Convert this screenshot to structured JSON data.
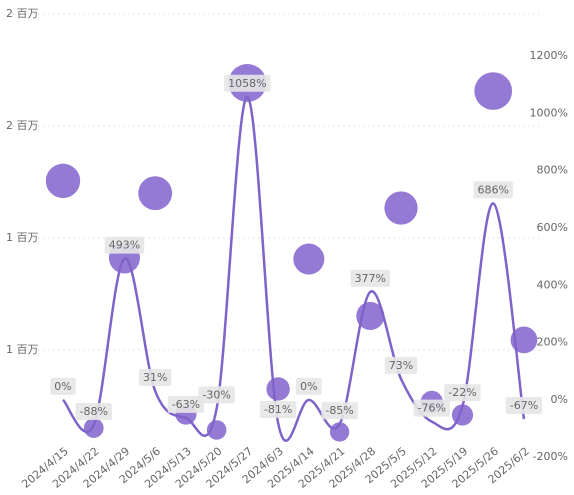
{
  "chart_data": {
    "type": "bubble-line",
    "categories": [
      "2024/4/15",
      "2024/4/22",
      "2024/4/29",
      "2024/5/6",
      "2024/5/13",
      "2024/5/20",
      "2024/5/27",
      "2024/6/3",
      "2025/4/14",
      "2025/4/21",
      "2025/4/28",
      "2025/5/5",
      "2025/5/12",
      "2025/5/19",
      "2025/5/26",
      "2025/6/2"
    ],
    "series": [
      {
        "type": "bubble",
        "color": "#8a6cd0",
        "values": [
          1255000,
          152000,
          911000,
          1200000,
          214000,
          143000,
          1692000,
          326000,
          906000,
          134000,
          652000,
          1134000,
          268000,
          210000,
          1656000,
          545000
        ]
      },
      {
        "type": "line",
        "axis": "y2",
        "color": "#7f63c9",
        "values": [
          0,
          -88,
          493,
          31,
          -63,
          -30,
          1058,
          -81,
          0,
          -85,
          377,
          73,
          -76,
          -22,
          686,
          -67
        ],
        "value_labels": [
          "0%",
          "-88%",
          "493%",
          "31%",
          "-63%",
          "-30%",
          "1058%",
          "-81%",
          "0%",
          "-85%",
          "377%",
          "73%",
          "-76%",
          "-22%",
          "686%",
          "-67%"
        ]
      }
    ],
    "ylim": [
      0,
      2000000
    ],
    "yticks": [
      {
        "value": 500000,
        "label": "1 百万"
      },
      {
        "value": 1000000,
        "label": "1 百万"
      },
      {
        "value": 1500000,
        "label": "2 百万"
      },
      {
        "value": 2000000,
        "label": "2 百万"
      }
    ],
    "y2lim": [
      -217,
      1347
    ],
    "y2ticks": [
      {
        "value": -200,
        "label": "-200%"
      },
      {
        "value": 0,
        "label": "0%"
      },
      {
        "value": 200,
        "label": "200%"
      },
      {
        "value": 400,
        "label": "400%"
      },
      {
        "value": 600,
        "label": "600%"
      },
      {
        "value": 800,
        "label": "800%"
      },
      {
        "value": 1000,
        "label": "1000%"
      },
      {
        "value": 1200,
        "label": "1200%"
      }
    ],
    "grid": true
  }
}
